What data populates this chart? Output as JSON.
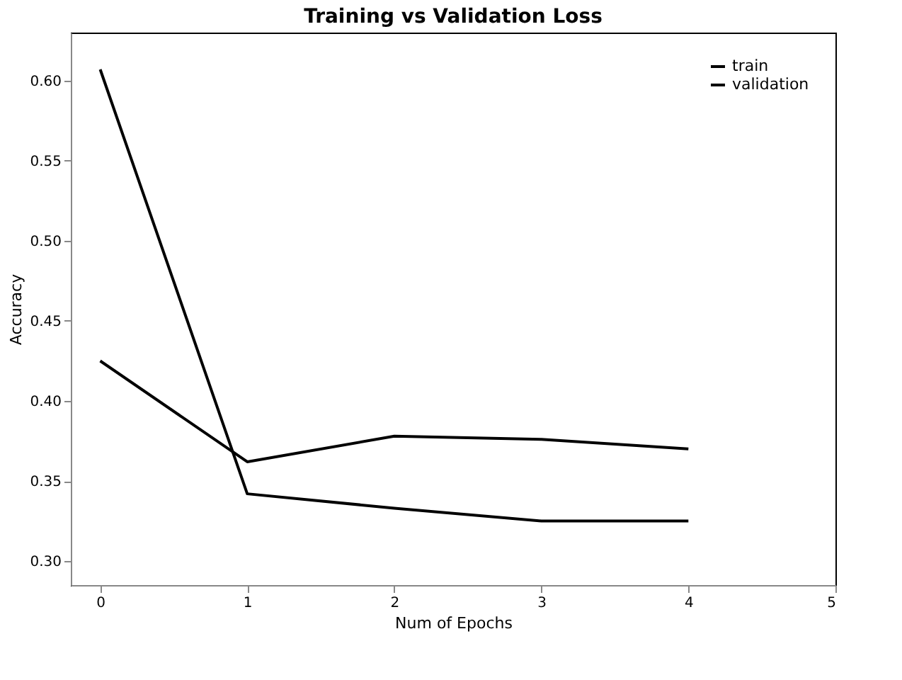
{
  "chart_data": {
    "type": "line",
    "title": "Training vs Validation Loss",
    "xlabel": "Num of Epochs",
    "ylabel": "Accuracy",
    "x": [
      0,
      1,
      2,
      3,
      4
    ],
    "series": [
      {
        "name": "train",
        "color": "#000000",
        "values": [
          0.607,
          0.342,
          0.333,
          0.325,
          0.325
        ]
      },
      {
        "name": "validation",
        "color": "#000000",
        "values": [
          0.425,
          0.362,
          0.378,
          0.376,
          0.37
        ]
      }
    ],
    "xlim": [
      -0.2,
      5
    ],
    "xticks": [
      0,
      1,
      2,
      3,
      4,
      5
    ],
    "ylim": [
      0.285,
      0.63
    ],
    "yticks": [
      {
        "value": 0.3,
        "label": "0.30"
      },
      0.35,
      {
        "value": 0.4,
        "label": "0.40"
      },
      0.45,
      {
        "value": 0.5,
        "label": "0.50"
      },
      0.55,
      {
        "value": 0.6,
        "label": "0.60"
      }
    ],
    "legend": "top right",
    "grid": false,
    "line_style": "solid",
    "marker": "none"
  }
}
